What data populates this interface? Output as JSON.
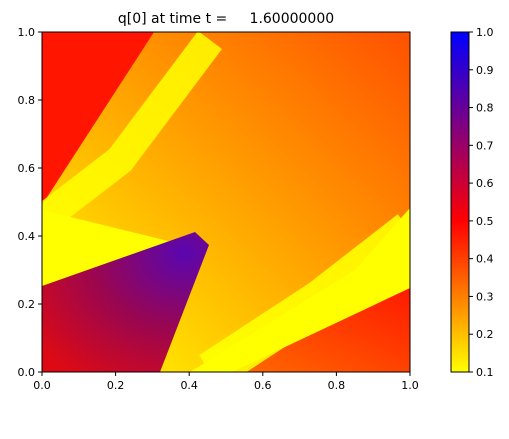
{
  "chart_data": {
    "type": "heatmap",
    "title": "q[0] at time t =     1.60000000",
    "xlabel": "",
    "ylabel": "",
    "xlim": [
      0,
      1
    ],
    "ylim": [
      0,
      1
    ],
    "xticks": [
      "0.0",
      "0.2",
      "0.4",
      "0.6",
      "0.8",
      "1.0"
    ],
    "yticks": [
      "0.0",
      "0.2",
      "0.4",
      "0.6",
      "0.8",
      "1.0"
    ],
    "grid": false,
    "colorbar": {
      "range": [
        0.1,
        1.0
      ],
      "ticks": [
        "0.1",
        "0.2",
        "0.3",
        "0.4",
        "0.5",
        "0.6",
        "0.7",
        "0.8",
        "0.9",
        "1.0"
      ],
      "colors": [
        "#ffff00",
        "#ff0000",
        "#0000ff"
      ],
      "position": "right"
    },
    "regions": [
      {
        "label": "upper-left band",
        "value_range": [
          0.5,
          0.55
        ]
      },
      {
        "label": "lower-left triangular region",
        "value_range": [
          0.55,
          0.85
        ]
      },
      {
        "label": "central diagonal gradient",
        "value_range": [
          0.1,
          0.45
        ]
      },
      {
        "label": "lower-right band",
        "value_range": [
          0.3,
          0.55
        ]
      },
      {
        "label": "yellow diagonal bands",
        "value_range": [
          0.1,
          0.15
        ]
      }
    ]
  }
}
